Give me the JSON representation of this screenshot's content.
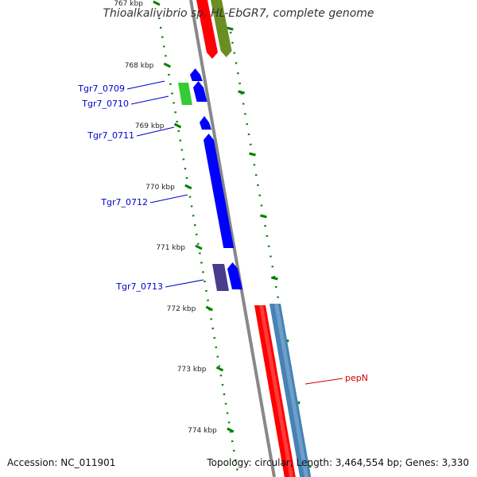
{
  "title": "Thioalkalivibrio sp. HL-EbGR7, complete genome",
  "footer": {
    "accession": "Accession: NC_011901",
    "topology": "Topology: circular; Length: 3,464,554 bp; Genes: 3,330"
  },
  "colors": {
    "backbone": "#888888",
    "tick": "#008000",
    "tick_label": "#222222",
    "gene_label": "#0000cc",
    "gene_label_highlight": "#cc0000",
    "blue": "#0000ff",
    "red": "#ff0000",
    "olive": "#6b8e23",
    "green": "#33cc33",
    "indigo": "#483d8b",
    "steel": "#4682b4"
  },
  "ticks": [
    {
      "label": "767 kbp"
    },
    {
      "label": "768 kbp"
    },
    {
      "label": "769 kbp"
    },
    {
      "label": "770 kbp"
    },
    {
      "label": "771 kbp"
    },
    {
      "label": "772 kbp"
    },
    {
      "label": "773 kbp"
    },
    {
      "label": "774 kbp"
    }
  ],
  "genes": [
    {
      "id": "red-upper",
      "color": "red"
    },
    {
      "id": "olive-upper",
      "color": "olive"
    },
    {
      "id": "blue-small-1",
      "color": "blue"
    },
    {
      "id": "green-0710",
      "color": "green"
    },
    {
      "id": "blue-0710",
      "color": "blue"
    },
    {
      "id": "blue-0711",
      "color": "blue"
    },
    {
      "id": "blue-0712",
      "color": "blue"
    },
    {
      "id": "indigo-0713",
      "color": "indigo"
    },
    {
      "id": "blue-0713",
      "color": "blue"
    },
    {
      "id": "red-lower",
      "color": "red"
    },
    {
      "id": "steel-pepN",
      "color": "steel"
    }
  ],
  "labels": [
    {
      "text": "Tgr7_0709",
      "highlight": false
    },
    {
      "text": "Tgr7_0710",
      "highlight": false
    },
    {
      "text": "Tgr7_0711",
      "highlight": false
    },
    {
      "text": "Tgr7_0712",
      "highlight": false
    },
    {
      "text": "Tgr7_0713",
      "highlight": false
    },
    {
      "text": "pepN",
      "highlight": true
    }
  ]
}
